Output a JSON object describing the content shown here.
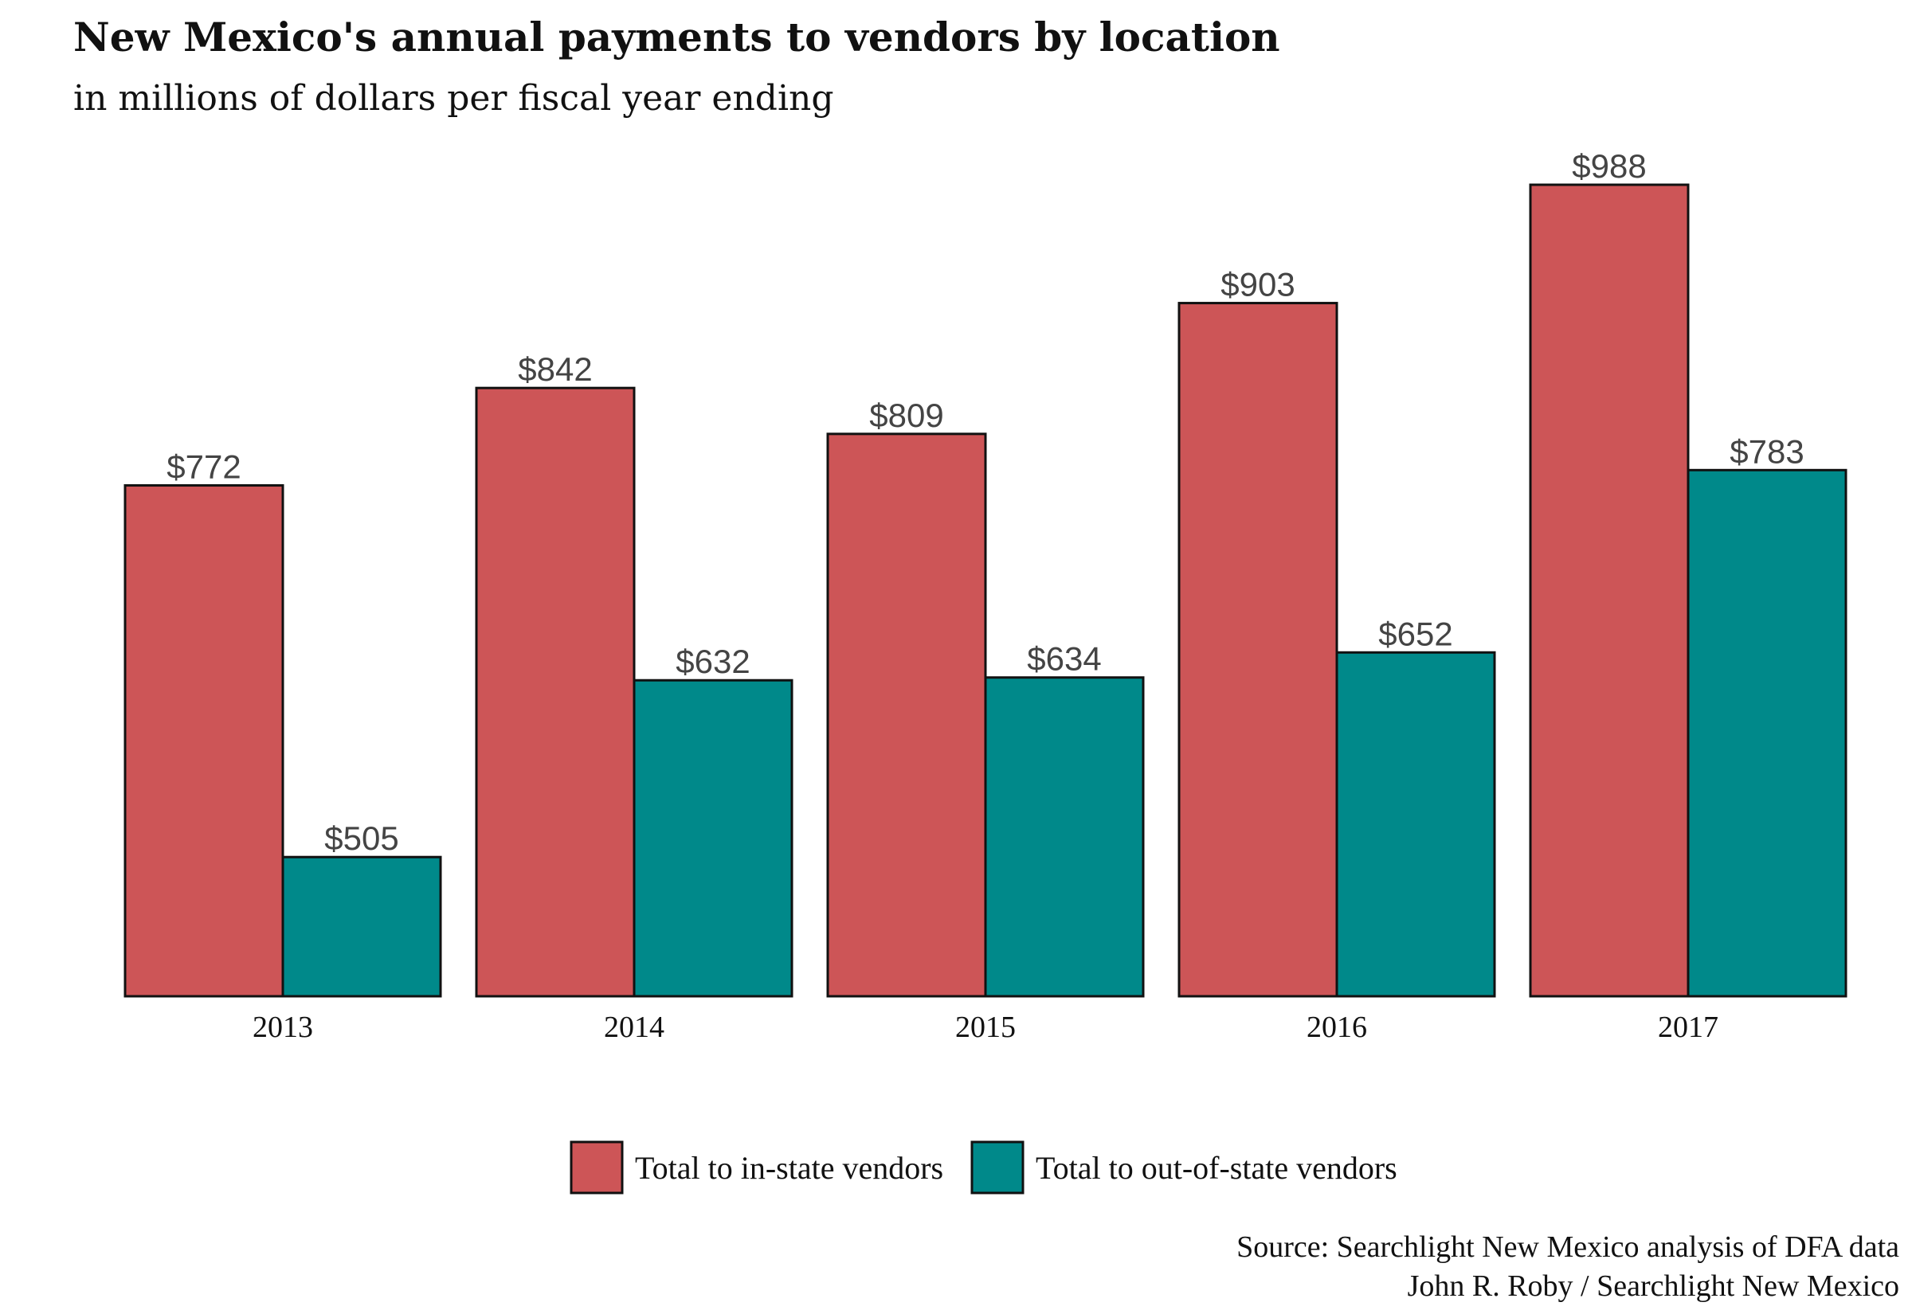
{
  "chart_data": {
    "type": "bar",
    "title": "New Mexico's annual payments to vendors by location",
    "subtitle": "in millions of dollars per fiscal year ending",
    "categories": [
      "2013",
      "2014",
      "2015",
      "2016",
      "2017"
    ],
    "series": [
      {
        "name": "Total to in-state vendors",
        "color": "#cd5557",
        "values": [
          772,
          842,
          809,
          903,
          988
        ],
        "labels": [
          "$772",
          "$842",
          "$809",
          "$903",
          "$988"
        ]
      },
      {
        "name": "Total to out-of-state vendors",
        "color": "#00898a",
        "values": [
          505,
          632,
          634,
          652,
          783
        ],
        "labels": [
          "$505",
          "$632",
          "$634",
          "$652",
          "$783"
        ]
      }
    ],
    "ylim": [
      405,
      1010
    ],
    "grid": false,
    "legend_position": "bottom",
    "xlabel": "",
    "ylabel": "",
    "caption": [
      "Source: Searchlight New Mexico analysis of DFA data",
      "John R. Roby / Searchlight New Mexico"
    ]
  }
}
